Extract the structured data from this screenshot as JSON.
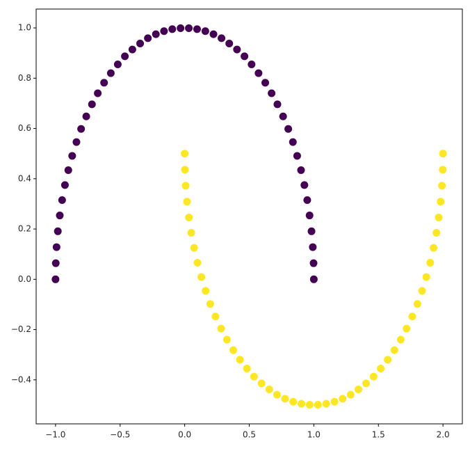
{
  "chart_data": {
    "type": "scatter",
    "xlim": [
      -1.15,
      2.15
    ],
    "ylim": [
      -0.575,
      1.075
    ],
    "xticks": [
      {
        "value": -1,
        "label": "−1.0"
      },
      {
        "value": -0.5,
        "label": "−0.5"
      },
      {
        "value": 0,
        "label": "0.0"
      },
      0.5,
      {
        "value": 1,
        "label": "1.0"
      },
      1.5,
      {
        "value": 2,
        "label": "2.0"
      }
    ],
    "yticks": [
      {
        "value": -0.4,
        "label": "−0.4"
      },
      {
        "value": -0.2,
        "label": "−0.2"
      },
      {
        "value": 0,
        "label": "0.0"
      },
      0.2,
      0.4,
      0.6,
      0.8,
      {
        "value": 1,
        "label": "1.0"
      }
    ],
    "series": [
      {
        "color": "#440154",
        "x": [
          1.0,
          0.998,
          0.992,
          0.982,
          0.967,
          0.949,
          0.927,
          0.901,
          0.871,
          0.838,
          0.802,
          0.762,
          0.718,
          0.673,
          0.624,
          0.572,
          0.518,
          0.463,
          0.405,
          0.345,
          0.285,
          0.223,
          0.16,
          0.096,
          0.032,
          -0.032,
          -0.096,
          -0.16,
          -0.223,
          -0.285,
          -0.345,
          -0.405,
          -0.463,
          -0.518,
          -0.572,
          -0.624,
          -0.673,
          -0.718,
          -0.762,
          -0.802,
          -0.838,
          -0.871,
          -0.901,
          -0.927,
          -0.949,
          -0.967,
          -0.982,
          -0.992,
          -0.998,
          -1.0
        ],
        "y": [
          0.0,
          0.064,
          0.128,
          0.191,
          0.254,
          0.315,
          0.375,
          0.434,
          0.491,
          0.546,
          0.598,
          0.648,
          0.696,
          0.74,
          0.782,
          0.82,
          0.855,
          0.887,
          0.914,
          0.938,
          0.959,
          0.975,
          0.987,
          0.995,
          0.999,
          0.999,
          0.995,
          0.987,
          0.975,
          0.959,
          0.938,
          0.914,
          0.887,
          0.855,
          0.82,
          0.782,
          0.74,
          0.696,
          0.648,
          0.598,
          0.546,
          0.491,
          0.434,
          0.375,
          0.315,
          0.254,
          0.191,
          0.128,
          0.064,
          0.0
        ]
      },
      {
        "color": "#fde725",
        "x": [
          0.0,
          0.002,
          0.008,
          0.018,
          0.033,
          0.051,
          0.073,
          0.099,
          0.129,
          0.162,
          0.198,
          0.238,
          0.282,
          0.327,
          0.376,
          0.428,
          0.482,
          0.537,
          0.595,
          0.655,
          0.715,
          0.777,
          0.84,
          0.904,
          0.968,
          1.032,
          1.096,
          1.16,
          1.223,
          1.285,
          1.345,
          1.405,
          1.463,
          1.518,
          1.572,
          1.624,
          1.673,
          1.718,
          1.762,
          1.802,
          1.838,
          1.871,
          1.901,
          1.927,
          1.949,
          1.967,
          1.982,
          1.992,
          1.998,
          2.0
        ],
        "y": [
          0.5,
          0.436,
          0.372,
          0.309,
          0.246,
          0.185,
          0.125,
          0.066,
          0.009,
          -0.046,
          -0.098,
          -0.148,
          -0.196,
          -0.24,
          -0.282,
          -0.32,
          -0.355,
          -0.387,
          -0.414,
          -0.438,
          -0.459,
          -0.475,
          -0.487,
          -0.495,
          -0.499,
          -0.499,
          -0.495,
          -0.487,
          -0.475,
          -0.459,
          -0.438,
          -0.414,
          -0.387,
          -0.355,
          -0.32,
          -0.282,
          -0.24,
          -0.196,
          -0.148,
          -0.098,
          -0.046,
          0.009,
          0.066,
          0.125,
          0.185,
          0.246,
          0.309,
          0.372,
          0.436,
          0.5
        ]
      }
    ]
  }
}
